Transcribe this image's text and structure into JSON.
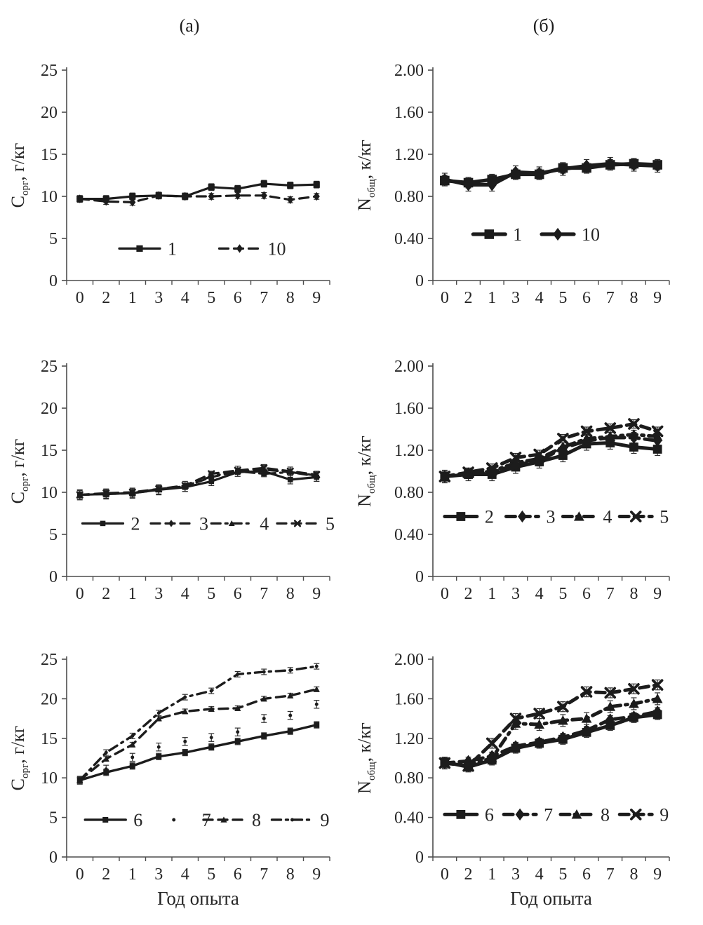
{
  "panels": {
    "a": "(а)",
    "b": "(б)"
  },
  "x_axis_title": "Год опыта",
  "x_tick_labels": [
    "0",
    "2",
    "1",
    "3",
    "4",
    "5",
    "6",
    "7",
    "8",
    "9"
  ],
  "line_color": "#1c1c1c",
  "chart_data": [
    {
      "id": "c-org-plots-1-10",
      "type": "line",
      "panel": "a",
      "ylabel": {
        "base": "C",
        "sub": "орг",
        "rest": ", г/кг"
      },
      "yticks": [
        "0",
        "5",
        "10",
        "15",
        "20",
        "25"
      ],
      "ymax": 25,
      "xlabel": "",
      "legend_y": 3.8,
      "legend_x": [
        0.2,
        0.58
      ],
      "series": [
        {
          "name": "1",
          "marker": "square",
          "line": "solid",
          "err": 0.4,
          "values": [
            9.7,
            9.7,
            10.0,
            10.1,
            10.0,
            11.1,
            10.9,
            11.5,
            11.3,
            11.4
          ]
        },
        {
          "name": "10",
          "marker": "diamond",
          "line": "dash",
          "err": 0.35,
          "values": [
            9.7,
            9.4,
            9.3,
            10.1,
            10.0,
            10.0,
            10.1,
            10.1,
            9.6,
            10.0
          ]
        }
      ]
    },
    {
      "id": "n-total-plots-1-10",
      "type": "line",
      "panel": "b",
      "ylabel": {
        "base": "N",
        "sub": "общ",
        "rest": ", к/кг"
      },
      "yticks": [
        "0",
        "0.40",
        "0.80",
        "1.20",
        "1.60",
        "2.00"
      ],
      "ymax": 2,
      "xlabel": "",
      "legend_y": 0.44,
      "legend_x": [
        0.17,
        0.46
      ],
      "series": [
        {
          "name": "1",
          "marker": "square",
          "line": "solid",
          "err": 0.05,
          "values": [
            0.95,
            0.93,
            0.96,
            1.01,
            1.01,
            1.07,
            1.07,
            1.1,
            1.11,
            1.1
          ]
        },
        {
          "name": "10",
          "marker": "diamond",
          "line": "solid",
          "err": 0.06,
          "values": [
            0.96,
            0.91,
            0.91,
            1.03,
            1.02,
            1.06,
            1.09,
            1.11,
            1.1,
            1.09
          ]
        }
      ]
    },
    {
      "id": "c-org-plots-2-5",
      "type": "line",
      "panel": "a",
      "ylabel": {
        "base": "C",
        "sub": "орг",
        "rest": ", г/кг"
      },
      "yticks": [
        "0",
        "5",
        "10",
        "15",
        "20",
        "25"
      ],
      "ymax": 25,
      "xlabel": "",
      "legend_y": 6.3,
      "legend_x": [
        0.06,
        0.32,
        0.55,
        0.8
      ],
      "series": [
        {
          "name": "2",
          "marker": "square",
          "line": "solid",
          "err": 0.5,
          "values": [
            9.7,
            9.8,
            9.9,
            10.3,
            10.6,
            11.3,
            12.4,
            12.5,
            11.5,
            11.8
          ]
        },
        {
          "name": "3",
          "marker": "diamond",
          "line": "dash",
          "err": 0.6,
          "values": [
            9.7,
            9.8,
            9.9,
            10.3,
            10.7,
            11.8,
            12.5,
            12.7,
            12.4,
            11.9
          ]
        },
        {
          "name": "4",
          "marker": "triangle",
          "line": "dashdot",
          "err": 0.35,
          "values": [
            9.7,
            9.8,
            9.9,
            10.4,
            10.7,
            11.9,
            12.5,
            12.2,
            12.4,
            12.0
          ]
        },
        {
          "name": "5",
          "marker": "x",
          "line": "dash",
          "err": 0.3,
          "values": [
            9.7,
            9.9,
            10.0,
            10.4,
            10.8,
            12.2,
            12.6,
            12.9,
            12.5,
            12.1
          ]
        }
      ]
    },
    {
      "id": "n-total-plots-2-5",
      "type": "line",
      "panel": "b",
      "ylabel": {
        "base": "N",
        "sub": "общ",
        "rest": ", к/кг"
      },
      "yticks": [
        "0",
        "0.40",
        "0.80",
        "1.20",
        "1.60",
        "2.00"
      ],
      "ymax": 2,
      "xlabel": "",
      "legend_y": 0.57,
      "legend_x": [
        0.05,
        0.31,
        0.55,
        0.79
      ],
      "series": [
        {
          "name": "2",
          "marker": "square",
          "line": "solid",
          "err": 0.06,
          "values": [
            0.95,
            0.97,
            0.97,
            1.04,
            1.09,
            1.15,
            1.26,
            1.27,
            1.23,
            1.21
          ]
        },
        {
          "name": "3",
          "marker": "diamond",
          "line": "dash",
          "err": 0.05,
          "values": [
            0.95,
            0.98,
            0.99,
            1.06,
            1.1,
            1.22,
            1.29,
            1.32,
            1.32,
            1.29
          ]
        },
        {
          "name": "4",
          "marker": "triangle",
          "line": "dashdot",
          "err": 0.04,
          "values": [
            0.95,
            0.98,
            1.0,
            1.08,
            1.12,
            1.23,
            1.31,
            1.33,
            1.35,
            1.33
          ]
        },
        {
          "name": "5",
          "marker": "x",
          "line": "dash",
          "err": 0.04,
          "values": [
            0.95,
            0.99,
            1.03,
            1.13,
            1.16,
            1.31,
            1.38,
            1.41,
            1.45,
            1.38
          ]
        }
      ]
    },
    {
      "id": "c-org-plots-6-9",
      "type": "line",
      "panel": "a",
      "ylabel": {
        "base": "C",
        "sub": "орг",
        "rest": ", г/кг"
      },
      "yticks": [
        "0",
        "5",
        "10",
        "15",
        "20",
        "25"
      ],
      "ymax": 25,
      "xlabel": "Год опыта",
      "legend_y": 4.7,
      "legend_x": [
        0.07,
        0.33,
        0.52,
        0.78
      ],
      "series": [
        {
          "name": "6",
          "marker": "square",
          "line": "solid",
          "err": 0.4,
          "values": [
            9.7,
            10.7,
            11.5,
            12.7,
            13.2,
            13.9,
            14.6,
            15.3,
            15.9,
            16.7
          ]
        },
        {
          "name": "7",
          "marker": "dot",
          "line": "none",
          "err": 0.5,
          "values": [
            9.7,
            11.1,
            12.6,
            13.9,
            14.6,
            15.1,
            15.8,
            17.5,
            17.9,
            19.3
          ]
        },
        {
          "name": "8",
          "marker": "triangle",
          "line": "dash",
          "err": 0.3,
          "values": [
            9.7,
            12.4,
            14.2,
            17.5,
            18.4,
            18.7,
            18.8,
            20.0,
            20.4,
            21.2
          ]
        },
        {
          "name": "9",
          "marker": "dot",
          "line": "dashdot",
          "err": 0.35,
          "values": [
            9.7,
            13.2,
            15.3,
            18.2,
            20.2,
            21.0,
            23.1,
            23.4,
            23.6,
            24.1
          ]
        }
      ]
    },
    {
      "id": "n-total-plots-6-9",
      "type": "line",
      "panel": "b",
      "ylabel": {
        "base": "N",
        "sub": "общ",
        "rest": ", к/кг"
      },
      "yticks": [
        "0",
        "0.40",
        "0.80",
        "1.20",
        "1.60",
        "2.00"
      ],
      "ymax": 2,
      "xlabel": "Год опыта",
      "legend_y": 0.43,
      "legend_x": [
        0.05,
        0.3,
        0.54,
        0.79
      ],
      "series": [
        {
          "name": "6",
          "marker": "square",
          "line": "solid",
          "err": 0.05,
          "values": [
            0.96,
            0.91,
            0.98,
            1.1,
            1.15,
            1.19,
            1.26,
            1.33,
            1.41,
            1.44
          ]
        },
        {
          "name": "7",
          "marker": "diamond",
          "line": "dash",
          "err": 0.04,
          "values": [
            0.95,
            0.97,
            1.02,
            1.12,
            1.16,
            1.21,
            1.28,
            1.39,
            1.42,
            1.47
          ]
        },
        {
          "name": "8",
          "marker": "triangle",
          "line": "dashdot",
          "err": 0.06,
          "values": [
            0.95,
            0.93,
            1.0,
            1.35,
            1.34,
            1.38,
            1.4,
            1.52,
            1.55,
            1.6
          ]
        },
        {
          "name": "9",
          "marker": "x",
          "line": "dash",
          "err": 0.05,
          "values": [
            0.95,
            0.92,
            1.15,
            1.4,
            1.45,
            1.52,
            1.67,
            1.66,
            1.7,
            1.74
          ]
        }
      ]
    }
  ]
}
